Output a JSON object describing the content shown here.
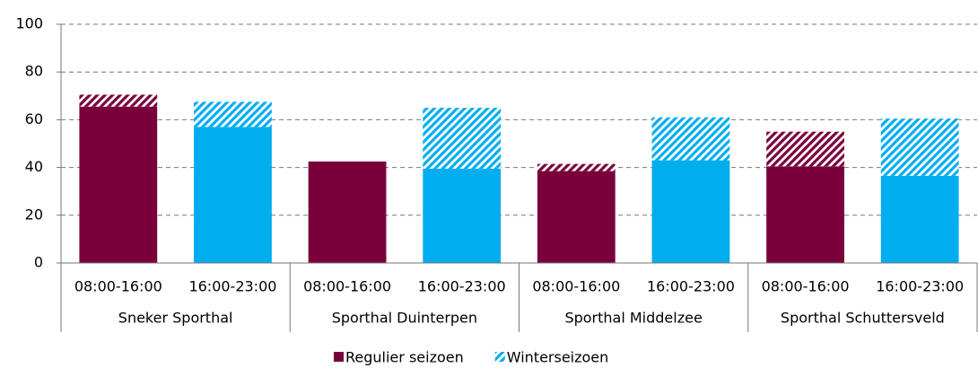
{
  "chart_data": {
    "type": "stacked_bar",
    "categories": [
      "08:00-16:00",
      "16:00-23:00",
      "08:00-16:00",
      "16:00-23:00",
      "08:00-16:00",
      "16:00-23:00",
      "08:00-16:00",
      "16:00-23:00"
    ],
    "groups": [
      "Sneker Sporthal",
      "Sporthal Duinterpen",
      "Sporthal Middelzee",
      "Sporthal Schuttersveld"
    ],
    "bar_colors": [
      "#7a003c",
      "#00adef",
      "#7a003c",
      "#00adef",
      "#7a003c",
      "#00adef",
      "#7a003c",
      "#00adef"
    ],
    "series": [
      {
        "name": "Regulier seizoen",
        "color": "#7a003c",
        "pattern": "solid",
        "values": [
          65.5,
          57,
          42.5,
          39.5,
          38.5,
          43,
          40.5,
          36.5
        ]
      },
      {
        "name": "Winterseizoen",
        "color": "#00adef",
        "pattern": "hatch",
        "values": [
          5,
          10.5,
          0,
          25.5,
          3,
          18,
          14.5,
          24
        ]
      }
    ],
    "ylim": [
      0,
      100
    ],
    "yticks": [
      0,
      20,
      40,
      60,
      80,
      100
    ],
    "grid": true
  }
}
